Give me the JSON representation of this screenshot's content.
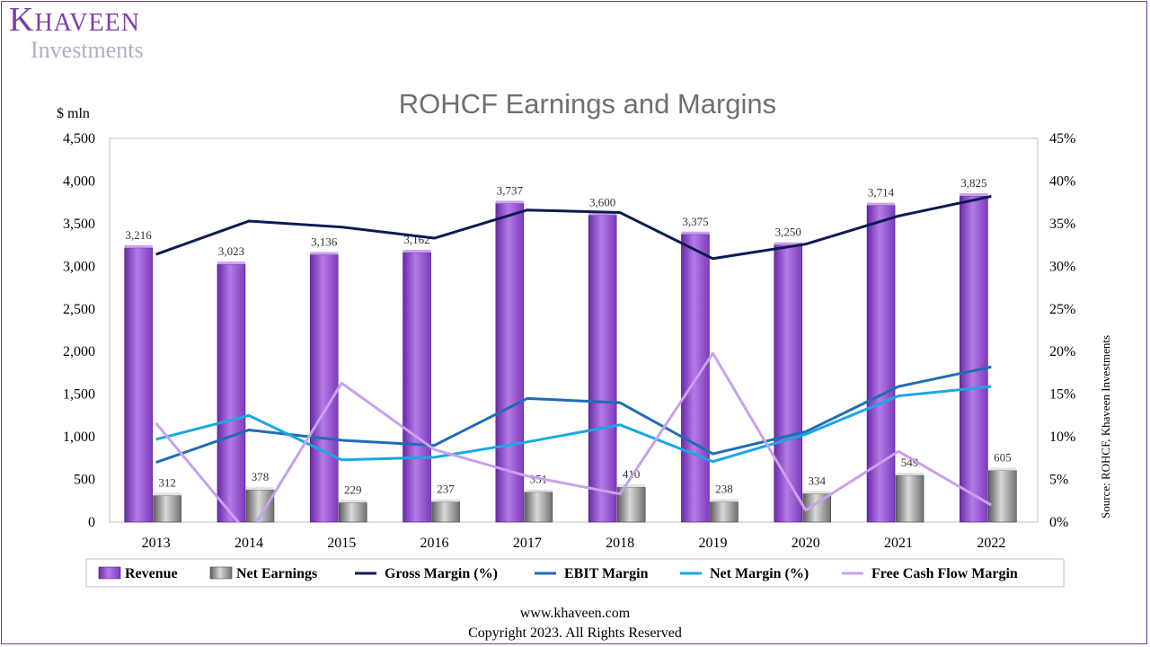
{
  "logo": {
    "main": "KHAVEEN",
    "sub": "Investments"
  },
  "footer": {
    "website": "www.khaveen.com",
    "copyright": "Copyright 2023. All Rights Reserved"
  },
  "source_note": "Source: ROHCF, Khaveen Investments",
  "colors": {
    "revenue": "#9b59d6",
    "net_earnings": "#8c8c8c",
    "gross_margin": "#0d1b52",
    "ebit_margin": "#1f6db5",
    "net_margin": "#1aa7e6",
    "fcf_margin": "#c9a0f0"
  },
  "chart_data": {
    "type": "bar",
    "title": "ROHCF Earnings and Margins",
    "ylabel": "$ mln",
    "categories": [
      "2013",
      "2014",
      "2015",
      "2016",
      "2017",
      "2018",
      "2019",
      "2020",
      "2021",
      "2022"
    ],
    "ylim": [
      0,
      4500
    ],
    "y_ticks": [
      "0",
      "500",
      "1,000",
      "1,500",
      "2,000",
      "2,500",
      "3,000",
      "3,500",
      "4,000",
      "4,500"
    ],
    "y2lim": [
      0,
      45
    ],
    "y2_ticks": [
      "0%",
      "5%",
      "10%",
      "15%",
      "20%",
      "25%",
      "30%",
      "35%",
      "40%",
      "45%"
    ],
    "series": [
      {
        "name": "Revenue",
        "kind": "bar",
        "axis": "left",
        "values": [
          3216,
          3023,
          3136,
          3162,
          3737,
          3600,
          3375,
          3250,
          3714,
          3825
        ],
        "labels": [
          "3,216",
          "3,023",
          "3,136",
          "3,162",
          "3,737",
          "3,600",
          "3,375",
          "3,250",
          "3,714",
          "3,825"
        ]
      },
      {
        "name": "Net Earnings",
        "kind": "bar",
        "axis": "left",
        "values": [
          312,
          378,
          229,
          237,
          351,
          410,
          238,
          334,
          549,
          605
        ],
        "labels": [
          "312",
          "378",
          "229",
          "237",
          "351",
          "410",
          "238",
          "334",
          "549",
          "605"
        ]
      },
      {
        "name": "Gross Margin (%)",
        "kind": "line",
        "axis": "right",
        "values": [
          31.4,
          35.3,
          34.6,
          33.3,
          36.6,
          36.3,
          30.9,
          32.6,
          35.9,
          38.2
        ]
      },
      {
        "name": "EBIT Margin",
        "kind": "line",
        "axis": "right",
        "values": [
          7.0,
          10.8,
          9.6,
          9.0,
          14.5,
          14.0,
          8.0,
          10.6,
          15.9,
          18.2
        ]
      },
      {
        "name": "Net Margin (%)",
        "kind": "line",
        "axis": "right",
        "values": [
          9.7,
          12.5,
          7.3,
          7.6,
          9.4,
          11.4,
          7.1,
          10.3,
          14.8,
          15.9
        ]
      },
      {
        "name": "Free Cash Flow Margin",
        "kind": "line",
        "axis": "right",
        "values": [
          11.6,
          -1.5,
          16.3,
          8.5,
          5.4,
          3.3,
          19.8,
          1.4,
          8.3,
          2.0
        ]
      }
    ]
  }
}
